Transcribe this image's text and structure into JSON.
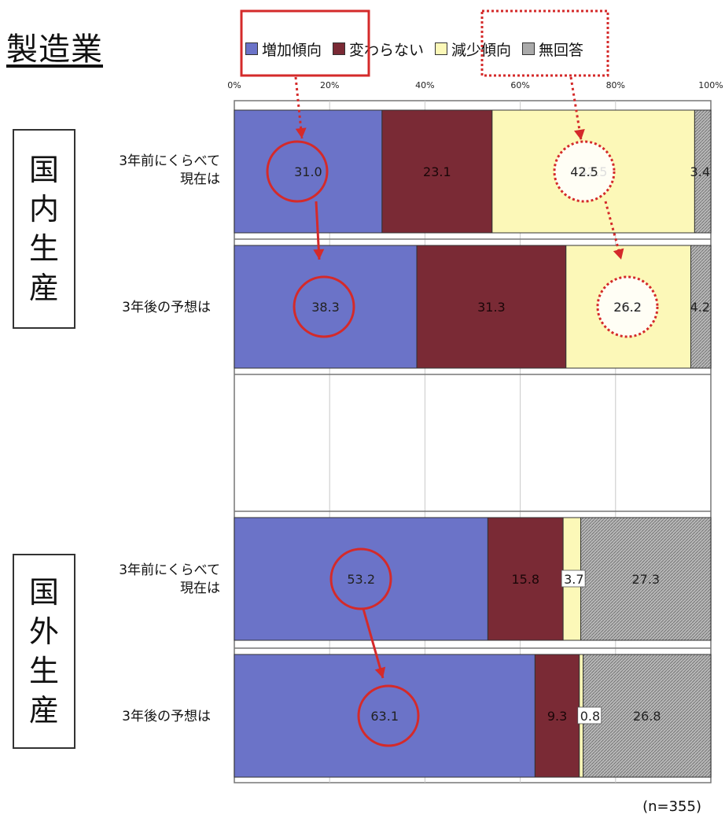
{
  "page_title": "製造業",
  "legend": [
    {
      "label": "増加傾向",
      "color": "#6b73c8"
    },
    {
      "label": "変わらない",
      "color": "#7a2a35"
    },
    {
      "label": "減少傾向",
      "color": "#fcf8b8"
    },
    {
      "label": "無回答",
      "color": "#aaaaaa"
    }
  ],
  "groups": [
    {
      "name": "国内生産",
      "chars": [
        "国",
        "内",
        "生",
        "産"
      ]
    },
    {
      "name": "国外生産",
      "chars": [
        "国",
        "外",
        "生",
        "産"
      ]
    }
  ],
  "note": "(n=355)",
  "chart_data": {
    "type": "bar",
    "orientation": "horizontal",
    "stacked": true,
    "xlim": [
      0,
      100
    ],
    "x_ticks": [
      "0%",
      "20%",
      "40%",
      "60%",
      "80%",
      "100%"
    ],
    "categories": [
      {
        "group": "国内生産",
        "label_lines": [
          "3年前にくらべて",
          "現在は"
        ]
      },
      {
        "group": "国内生産",
        "label_lines": [
          "3年後の予想は"
        ]
      },
      {
        "group": "国外生産",
        "label_lines": [
          "3年前にくらべて",
          "現在は"
        ]
      },
      {
        "group": "国外生産",
        "label_lines": [
          "3年後の予想は"
        ]
      }
    ],
    "series": [
      {
        "name": "増加傾向",
        "color": "#6b73c8",
        "values": [
          31.0,
          38.3,
          53.2,
          63.1
        ],
        "labels": [
          "31.0",
          "38.3",
          "53.2",
          "63.1"
        ]
      },
      {
        "name": "変わらない",
        "color": "#7a2a35",
        "values": [
          23.1,
          31.3,
          15.8,
          9.3
        ],
        "labels": [
          "23.1",
          "31.3",
          "15.8",
          "9.3"
        ]
      },
      {
        "name": "減少傾向",
        "color": "#fcf8b8",
        "values": [
          42.5,
          26.2,
          3.7,
          0.8
        ],
        "labels": [
          "42.5",
          "26.2",
          "3.7",
          "0.8"
        ]
      },
      {
        "name": "無回答",
        "color": "#aaaaaa",
        "values": [
          3.4,
          4.2,
          27.3,
          26.8
        ],
        "labels": [
          "3.4",
          "4.2",
          "27.3",
          "26.8"
        ]
      }
    ],
    "highlights": {
      "circled_series": [
        "増加傾向",
        "減少傾向"
      ],
      "annotation_color": "#d42a2a"
    }
  }
}
